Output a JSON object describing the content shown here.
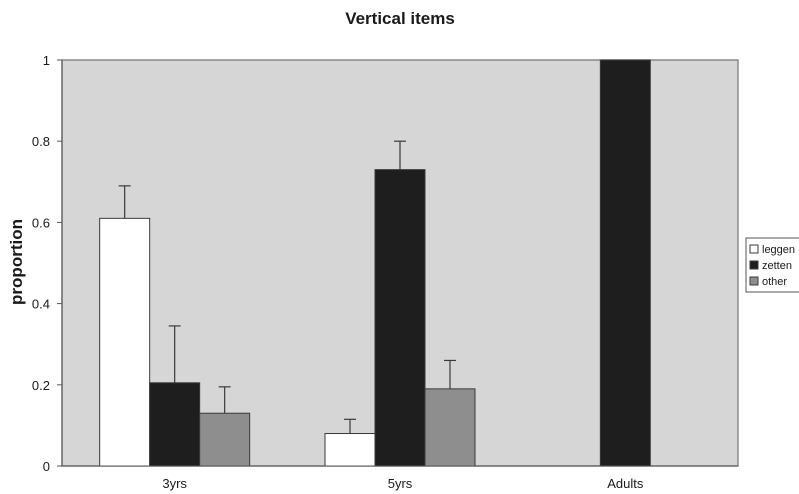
{
  "chart_data": {
    "type": "bar",
    "title": "Vertical items",
    "xlabel": "",
    "ylabel": "proportion",
    "categories": [
      "3yrs",
      "5yrs",
      "Adults"
    ],
    "ylim": [
      0,
      1
    ],
    "yticks": [
      "0",
      "0.2",
      "0.4",
      "0.6",
      "0.8",
      "1"
    ],
    "grid": false,
    "legend_position": "right",
    "plot_background": "#d6d6d6",
    "series": [
      {
        "name": "leggen",
        "color": "#ffffff",
        "values": [
          0.61,
          0.08,
          null
        ],
        "error": [
          0.08,
          0.035,
          null
        ]
      },
      {
        "name": "zetten",
        "color": "#1e1e1e",
        "values": [
          0.205,
          0.73,
          1.0
        ],
        "error": [
          0.14,
          0.07,
          null
        ]
      },
      {
        "name": "other",
        "color": "#8e8e8e",
        "values": [
          0.13,
          0.19,
          null
        ],
        "error": [
          0.065,
          0.07,
          null
        ]
      }
    ]
  }
}
